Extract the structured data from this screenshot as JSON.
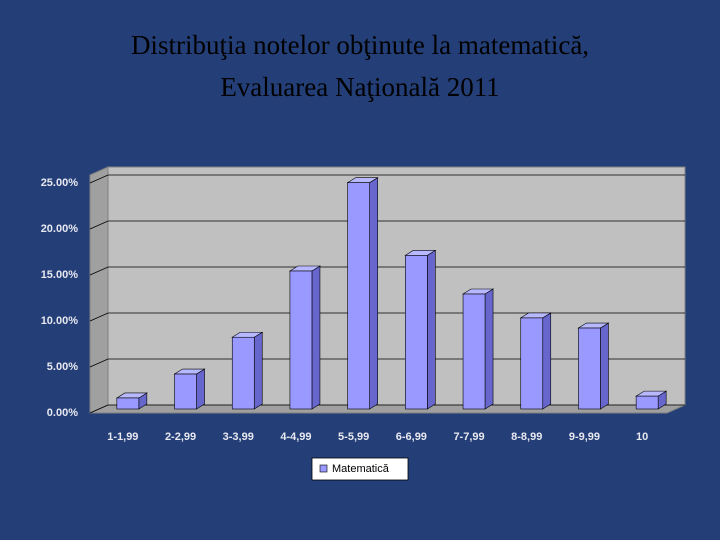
{
  "chart_data": {
    "type": "bar",
    "title": [
      "Distribuţia notelor obţinute la matematică,",
      "Evaluarea Naţională 2011"
    ],
    "categories": [
      "1-1,99",
      "2-2,99",
      "3-3,99",
      "4-4,99",
      "5-5,99",
      "6-6,99",
      "7-7,99",
      "8-8,99",
      "9-9,99",
      "10"
    ],
    "series": [
      {
        "name": "Matematică",
        "color": "#9999ff",
        "values": [
          1.2,
          3.8,
          7.8,
          15.0,
          24.6,
          16.7,
          12.5,
          9.9,
          8.8,
          1.4
        ]
      }
    ],
    "ylim": [
      0,
      25
    ],
    "yticks": [
      {
        "value": 0,
        "label": "0.00%"
      },
      {
        "value": 5,
        "label": "5.00%"
      },
      {
        "value": 10,
        "label": "10.00%"
      },
      {
        "value": 15,
        "label": "15.00%"
      },
      {
        "value": 20,
        "label": "20.00%"
      },
      {
        "value": 25,
        "label": "25.00%"
      }
    ],
    "grid": true,
    "legend": "bottom"
  }
}
